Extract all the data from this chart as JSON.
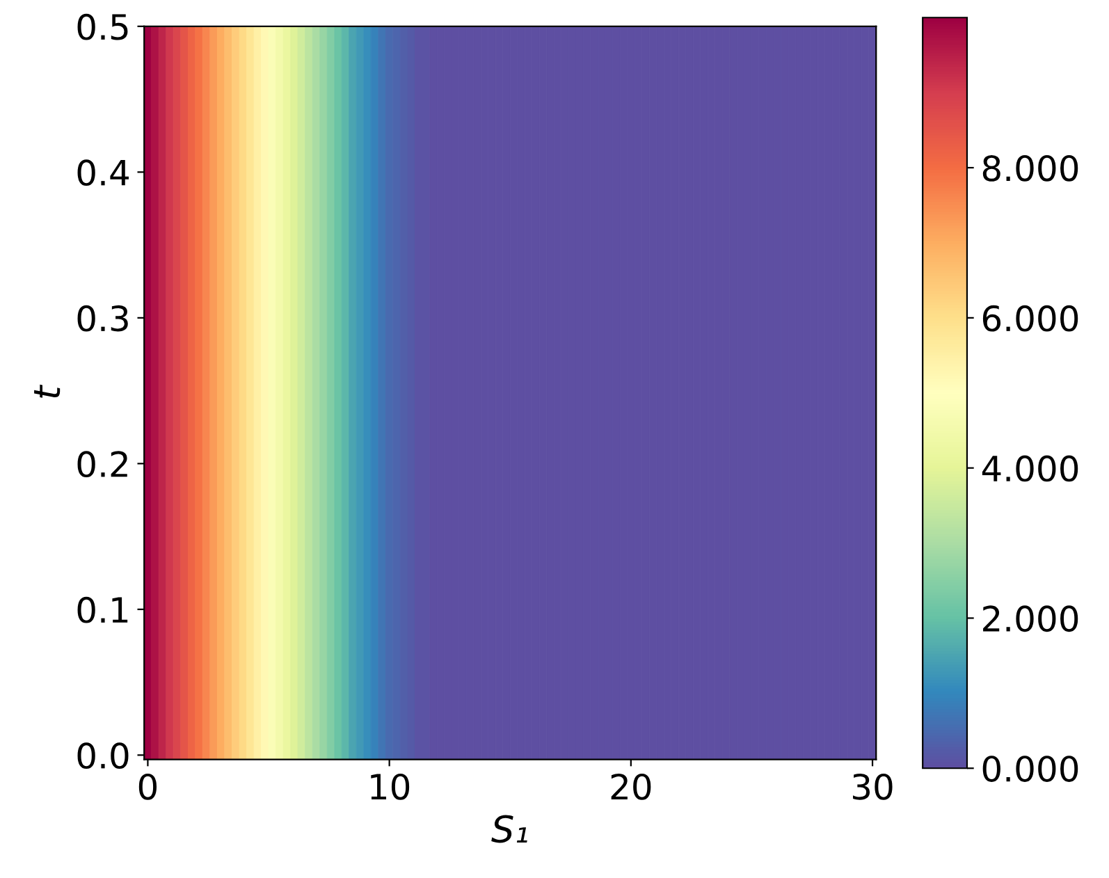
{
  "chart_data": {
    "type": "heatmap",
    "xlabel": "S₁",
    "ylabel": "t",
    "x": [
      0,
      0.3,
      0.61,
      0.91,
      1.21,
      1.52,
      1.82,
      2.12,
      2.42,
      2.73,
      3.03,
      3.33,
      3.64,
      3.94,
      4.24,
      4.55,
      4.85,
      5.15,
      5.45,
      5.76,
      6.06,
      6.36,
      6.67,
      6.97,
      7.27,
      7.58,
      7.88,
      8.18,
      8.48,
      8.79,
      9.09,
      9.39,
      9.7,
      10.0,
      10.3,
      10.61,
      10.91,
      11.21,
      11.52,
      11.82,
      12.12,
      12.42,
      12.73,
      13.03,
      13.33,
      13.64,
      13.94,
      14.24,
      14.55,
      14.85,
      15.15,
      15.45,
      15.76,
      16.06,
      16.36,
      16.67,
      16.97,
      17.27,
      17.58,
      17.88,
      18.18,
      18.48,
      18.79,
      19.09,
      19.39,
      19.7,
      20.0,
      20.3,
      20.61,
      20.91,
      21.21,
      21.52,
      21.82,
      22.12,
      22.42,
      22.73,
      23.03,
      23.33,
      23.64,
      23.94,
      24.24,
      24.55,
      24.85,
      25.15,
      25.45,
      25.76,
      26.06,
      26.36,
      26.67,
      26.97,
      27.27,
      27.58,
      27.88,
      28.18,
      28.48,
      28.79,
      29.09,
      29.39,
      29.7,
      30.0
    ],
    "cells": [
      [
        10,
        9.7,
        9.4,
        9.1,
        8.8,
        8.5,
        8.2,
        7.9,
        7.6,
        7.3,
        7.0,
        6.7,
        6.4,
        6.1,
        5.8,
        5.5,
        5.2,
        4.8,
        4.5,
        4.2,
        3.9,
        3.6,
        3.3,
        3.0,
        2.7,
        2.4,
        2.1,
        1.8,
        1.5,
        1.3,
        1.1,
        0.9,
        0.7,
        0.5,
        0.4,
        0.3,
        0.2,
        0.1,
        0.1,
        0,
        0,
        0,
        0,
        0,
        0,
        0,
        0,
        0,
        0,
        0,
        0,
        0,
        0,
        0,
        0,
        0,
        0,
        0,
        0,
        0,
        0,
        0,
        0,
        0,
        0,
        0,
        0,
        0,
        0,
        0,
        0,
        0,
        0,
        0,
        0,
        0,
        0,
        0,
        0,
        0,
        0,
        0,
        0,
        0,
        0,
        0,
        0,
        0,
        0,
        0,
        0,
        0,
        0,
        0,
        0,
        0,
        0,
        0,
        0,
        0
      ]
    ],
    "xlim": [
      -0.15,
      30.15
    ],
    "ylim": [
      -0.003,
      0.5
    ],
    "xticks": [
      0,
      10,
      20,
      30
    ],
    "yticks": [
      {
        "value": 0,
        "label": "0.0"
      },
      0.1,
      0.2,
      0.3,
      0.4,
      0.5
    ],
    "clim": [
      0,
      10
    ],
    "cticks": [
      {
        "value": 0,
        "label": "0.000"
      },
      {
        "value": 2,
        "label": "2.000"
      },
      {
        "value": 4,
        "label": "4.000"
      },
      {
        "value": 6,
        "label": "6.000"
      },
      {
        "value": 8,
        "label": "8.000"
      }
    ],
    "grid": false
  }
}
